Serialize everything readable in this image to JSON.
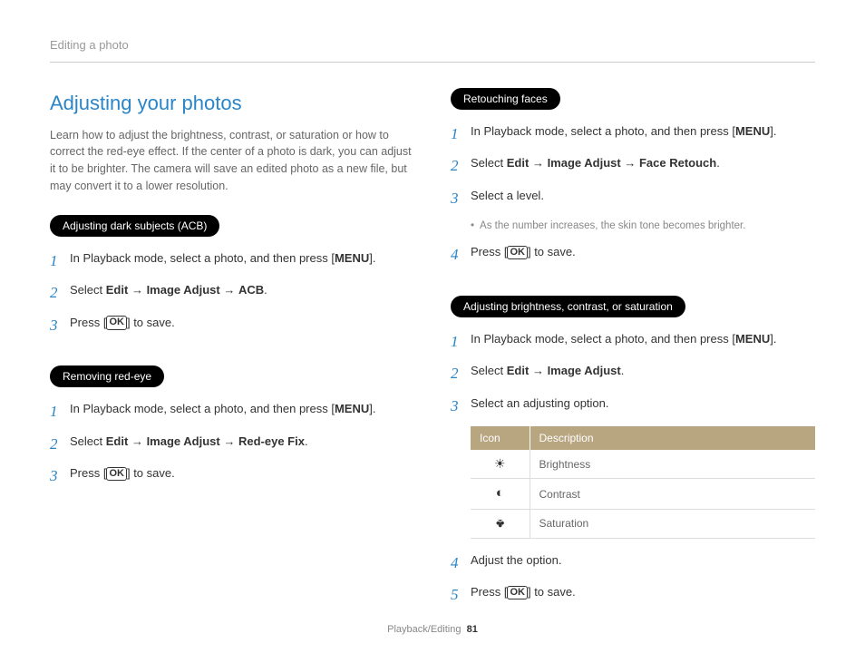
{
  "header": "Editing a photo",
  "footer": {
    "chapter": "Playback/Editing",
    "page": "81"
  },
  "left": {
    "title": "Adjusting your photos",
    "intro": "Learn how to adjust the brightness, contrast, or saturation or how to correct the red-eye effect. If the center of a photo is dark, you can adjust it to be brighter. The camera will save an edited photo as a new file, but may convert it to a lower resolution.",
    "sections": [
      {
        "heading": "Adjusting dark subjects (ACB)",
        "steps": [
          {
            "pre": "In Playback mode, select a photo, and then press [",
            "bold": "MENU",
            "post": "]."
          },
          {
            "pre": "Select ",
            "path": [
              "Edit",
              "Image Adjust",
              "ACB"
            ],
            "post": "."
          },
          {
            "pre": "Press [",
            "icon": "OK",
            "post": "] to save."
          }
        ]
      },
      {
        "heading": "Removing red-eye",
        "steps": [
          {
            "pre": "In Playback mode, select a photo, and then press [",
            "bold": "MENU",
            "post": "]."
          },
          {
            "pre": "Select ",
            "path": [
              "Edit",
              "Image Adjust",
              "Red-eye Fix"
            ],
            "post": "."
          },
          {
            "pre": "Press [",
            "icon": "OK",
            "post": "] to save."
          }
        ]
      }
    ]
  },
  "right": {
    "sections": [
      {
        "heading": "Retouching faces",
        "steps": [
          {
            "pre": "In Playback mode, select a photo, and then press [",
            "bold": "MENU",
            "post": "]."
          },
          {
            "pre": "Select ",
            "path": [
              "Edit",
              "Image Adjust",
              "Face Retouch"
            ],
            "post": "."
          },
          {
            "pre": "Select a level.",
            "note": "As the number increases, the skin tone becomes brighter."
          },
          {
            "pre": "Press [",
            "icon": "OK",
            "post": "] to save."
          }
        ]
      },
      {
        "heading": "Adjusting brightness, contrast, or saturation",
        "steps": [
          {
            "pre": "In Playback mode, select a photo, and then press [",
            "bold": "MENU",
            "post": "]."
          },
          {
            "pre": "Select ",
            "path": [
              "Edit",
              "Image Adjust"
            ],
            "post": "."
          },
          {
            "pre": "Select an adjusting option.",
            "table": true
          },
          {
            "pre": "Adjust the option."
          },
          {
            "pre": "Press [",
            "icon": "OK",
            "post": "] to save."
          }
        ]
      }
    ]
  },
  "table": {
    "headers": [
      "Icon",
      "Description"
    ],
    "rows": [
      {
        "icon": "brightness",
        "desc": "Brightness"
      },
      {
        "icon": "contrast",
        "desc": "Contrast"
      },
      {
        "icon": "saturation",
        "desc": "Saturation"
      }
    ]
  }
}
